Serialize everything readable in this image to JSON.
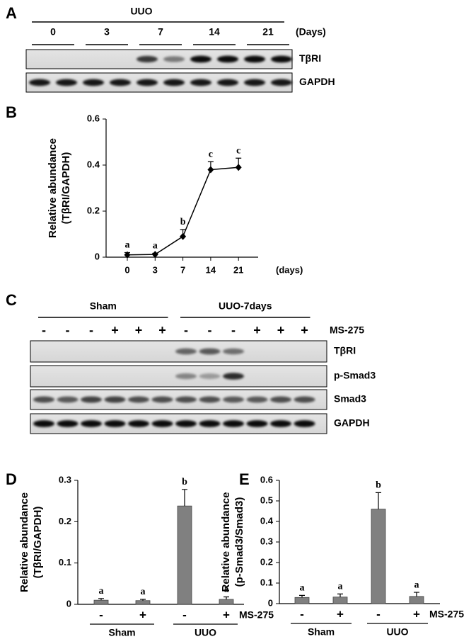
{
  "blots": {
    "A": {
      "letter": "A",
      "header": "UUO",
      "lanes": [
        "0",
        "3",
        "7",
        "14",
        "21"
      ],
      "unit": "(Days)",
      "rows": [
        "TβRI",
        "GAPDH"
      ]
    },
    "C": {
      "letter": "C",
      "groups": [
        "Sham",
        "UUO-7days"
      ],
      "signs": [
        "-",
        "-",
        "-",
        "+",
        "+",
        "+",
        "-",
        "-",
        "-",
        "+",
        "+",
        "+"
      ],
      "treatment": "MS-275",
      "rows": [
        "TβRI",
        "p-Smad3",
        "Smad3",
        "GAPDH"
      ]
    }
  },
  "chart_data": [
    {
      "type": "line",
      "panel": "B",
      "ylabel": [
        "Relative abundance",
        "(TβRI/GAPDH)"
      ],
      "xlabel": "(days)",
      "categories": [
        "0",
        "3",
        "7",
        "14",
        "21"
      ],
      "series": [
        {
          "color": "#000000",
          "values": [
            0.01,
            0.012,
            0.09,
            0.38,
            0.39
          ],
          "errors": [
            0.01,
            0.005,
            0.03,
            0.035,
            0.04
          ]
        }
      ],
      "annotations": [
        "a",
        "a",
        "b",
        "c",
        "c"
      ],
      "ylim": [
        0,
        0.6
      ],
      "yticks": [
        0,
        0.2,
        0.4,
        0.6
      ]
    },
    {
      "type": "bar",
      "panel": "D",
      "ylabel": [
        "Relative abundance",
        "(TβRI/GAPDH)"
      ],
      "categories": [
        "-",
        "+",
        "-",
        "+"
      ],
      "groups": [
        "Sham",
        "UUO"
      ],
      "treatment": "MS-275",
      "series": [
        {
          "color": "#808080",
          "values": [
            0.01,
            0.009,
            0.238,
            0.012
          ],
          "errors": [
            0.004,
            0.003,
            0.04,
            0.006
          ]
        }
      ],
      "annotations": [
        "a",
        "a",
        "b",
        "a"
      ],
      "ylim": [
        0,
        0.3
      ],
      "yticks": [
        0,
        0.1,
        0.2,
        0.3
      ]
    },
    {
      "type": "bar",
      "panel": "E",
      "ylabel": [
        "Relative abundance",
        "(p-Smad3/Smad3)"
      ],
      "categories": [
        "-",
        "+",
        "-",
        "+"
      ],
      "groups": [
        "Sham",
        "UUO"
      ],
      "treatment": "MS-275",
      "series": [
        {
          "color": "#808080",
          "values": [
            0.03,
            0.032,
            0.46,
            0.035
          ],
          "errors": [
            0.01,
            0.015,
            0.08,
            0.02
          ]
        }
      ],
      "annotations": [
        "a",
        "a",
        "b",
        "a"
      ],
      "ylim": [
        0,
        0.6
      ],
      "yticks": [
        0,
        0.1,
        0.2,
        0.3,
        0.4,
        0.5,
        0.6
      ]
    }
  ]
}
